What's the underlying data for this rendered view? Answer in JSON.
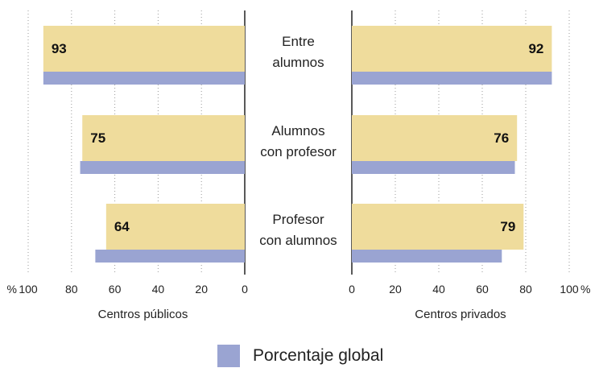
{
  "chart_data": {
    "type": "bar",
    "orientation": "horizontal-butterfly",
    "categories": [
      [
        "Entre",
        "alumnos"
      ],
      [
        "Alumnos",
        "con profesor"
      ],
      [
        "Profesor",
        "con alumnos"
      ]
    ],
    "panels": [
      {
        "name": "Centros públicos",
        "direction": "left",
        "series": [
          {
            "name": "",
            "values": [
              93,
              75,
              64
            ]
          },
          {
            "name": "Porcentaje global",
            "values": [
              93,
              76,
              69
            ]
          }
        ],
        "ticks": [
          {
            "value": 100,
            "label": "100"
          },
          {
            "value": 80,
            "label": "80"
          },
          {
            "value": 60,
            "label": "60"
          },
          {
            "value": 40,
            "label": "40"
          },
          {
            "value": 20,
            "label": "20"
          },
          {
            "value": 0,
            "label": "0"
          }
        ],
        "unit_label": "%",
        "xlim": [
          0,
          100
        ]
      },
      {
        "name": "Centros privados",
        "direction": "right",
        "series": [
          {
            "name": "",
            "values": [
              92,
              76,
              79
            ]
          },
          {
            "name": "Porcentaje global",
            "values": [
              92,
              75,
              69
            ]
          }
        ],
        "ticks": [
          {
            "value": 0,
            "label": "0"
          },
          {
            "value": 20,
            "label": "20"
          },
          {
            "value": 40,
            "label": "40"
          },
          {
            "value": 60,
            "label": "60"
          },
          {
            "value": 80,
            "label": "80"
          },
          {
            "value": 100,
            "label": "100"
          }
        ],
        "unit_label": "%",
        "xlim": [
          0,
          100
        ]
      }
    ],
    "colors": {
      "main": "#efdc9c",
      "global": "#9aa4d2",
      "grid": "#999999",
      "axis": "#222222"
    },
    "grid": "vertical-dotted",
    "legend": {
      "position": "bottom-center",
      "entries": [
        "Porcentaje global"
      ]
    }
  }
}
